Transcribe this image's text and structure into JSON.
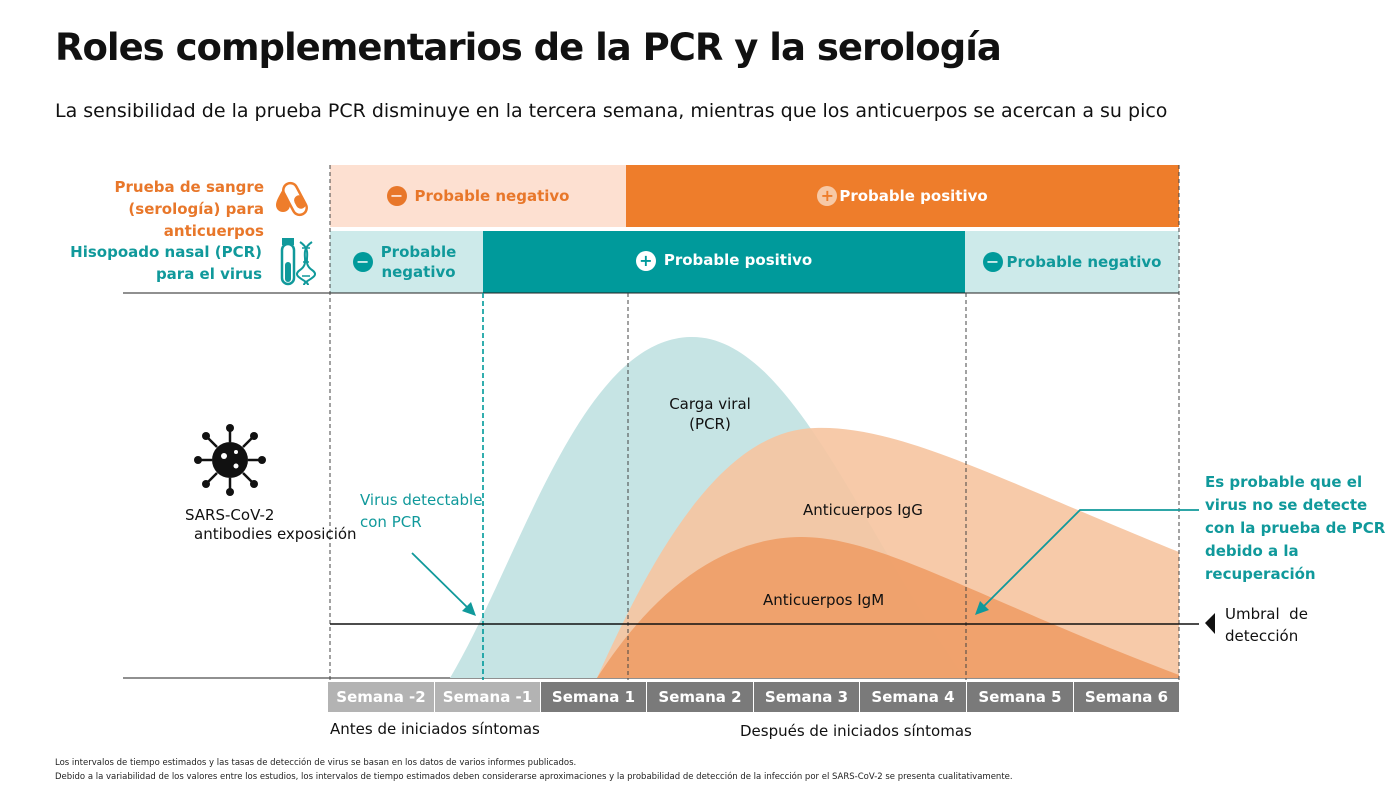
{
  "title": "Roles complementarios de la PCR y la serología",
  "subtitle": "La sensibilidad de la prueba PCR disminuye en la tercera semana, mientras que los anticuerpos se acercan a su pico",
  "rows": {
    "serology": {
      "label_lines": [
        "Prueba de sangre",
        "(serología) para",
        "anticuerpos"
      ],
      "icon": "blood-tube-icon",
      "neg_label": "Probable negativo",
      "pos_label": "Probable positivo"
    },
    "pcr": {
      "label_lines": [
        "Hisopoado nasal (PCR)",
        "para el virus"
      ],
      "icon": "swab-dna-icon",
      "neg1_lines": [
        "Probable",
        "negativo"
      ],
      "pos_label": "Probable positivo",
      "neg2_label": "Probable negativo"
    }
  },
  "virus": {
    "icon": "virus-icon",
    "label_line1": "SARS-CoV-2",
    "label_line2": "antibodies exposición"
  },
  "annotations": {
    "virus_detectable": [
      "Virus detectable",
      "con PCR"
    ],
    "viral_load": [
      "Carga viral",
      "(PCR)"
    ],
    "igg": "Anticuerpos IgG",
    "igm": "Anticuerpos IgM",
    "recovery": [
      "Es probable que el",
      "virus no se detecte",
      "con la prueba de PCR",
      "debido a la",
      "recuperación"
    ],
    "threshold": [
      "Umbral  de",
      "detección"
    ]
  },
  "weeks": [
    "Semana -2",
    "Semana -1",
    "Semana 1",
    "Semana 2",
    "Semana 3",
    "Semana 4",
    "Semana 5",
    "Semana 6"
  ],
  "periods": {
    "before": "Antes de iniciados síntomas",
    "after": "Después de iniciados síntomas"
  },
  "footnotes": [
    "Los intervalos de tiempo estimados y las tasas de detección de virus se basan en los datos de varios informes publicados.",
    "Debido a la variabilidad de los valores entre los estudios, los intervalos de tiempo estimados deben considerarse aproximaciones y la probabilidad de detección de la infección por el SARS-CoV-2 se presenta cualitativamente."
  ],
  "colors": {
    "orange": "#ee7d2b",
    "orange_light": "#fde0d1",
    "teal": "#009a9b",
    "teal_light": "#cdeaea",
    "viral_fill": "#c6e4e4",
    "igg_fill": "#f6c4a0",
    "igm_fill": "#ef9b63",
    "week_dark": "#7a7a7a",
    "week_light": "#b3b3b3"
  }
}
